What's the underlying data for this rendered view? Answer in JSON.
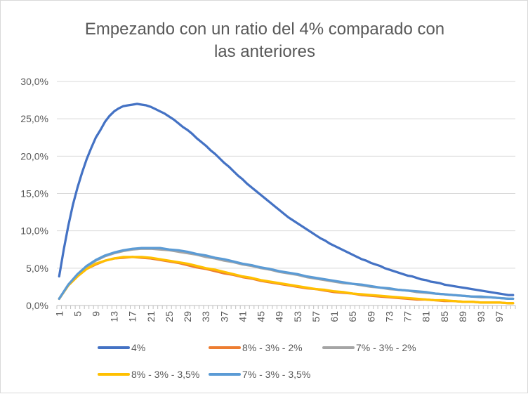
{
  "chart_data": {
    "type": "line",
    "title_lines": [
      "Empezando con un ratio del 4% comparado con",
      "las anteriores"
    ],
    "xlabel": "",
    "ylabel": "",
    "x_range": [
      1,
      100
    ],
    "x_tick_labels": [
      "1",
      "5",
      "9",
      "13",
      "17",
      "21",
      "25",
      "29",
      "33",
      "37",
      "41",
      "45",
      "49",
      "53",
      "57",
      "61",
      "65",
      "69",
      "73",
      "77",
      "81",
      "85",
      "89",
      "93",
      "97"
    ],
    "ylim": [
      0,
      0.3
    ],
    "y_tick_values": [
      0,
      0.05,
      0.1,
      0.15,
      0.2,
      0.25,
      0.3
    ],
    "y_tick_labels": [
      "0,0%",
      "5,0%",
      "10,0%",
      "15,0%",
      "20,0%",
      "25,0%",
      "30,0%"
    ],
    "grid": true,
    "legend_position": "bottom",
    "series": [
      {
        "name": "4%",
        "color": "#4472c4",
        "points": [
          [
            1,
            0.039
          ],
          [
            2,
            0.075
          ],
          [
            3,
            0.107
          ],
          [
            4,
            0.135
          ],
          [
            5,
            0.158
          ],
          [
            6,
            0.178
          ],
          [
            7,
            0.196
          ],
          [
            8,
            0.211
          ],
          [
            9,
            0.225
          ],
          [
            10,
            0.235
          ],
          [
            11,
            0.246
          ],
          [
            12,
            0.254
          ],
          [
            13,
            0.26
          ],
          [
            14,
            0.264
          ],
          [
            15,
            0.267
          ],
          [
            16,
            0.268
          ],
          [
            17,
            0.269
          ],
          [
            18,
            0.27
          ],
          [
            19,
            0.269
          ],
          [
            20,
            0.268
          ],
          [
            21,
            0.266
          ],
          [
            22,
            0.263
          ],
          [
            23,
            0.26
          ],
          [
            24,
            0.257
          ],
          [
            25,
            0.253
          ],
          [
            26,
            0.249
          ],
          [
            27,
            0.244
          ],
          [
            28,
            0.239
          ],
          [
            29,
            0.235
          ],
          [
            30,
            0.23
          ],
          [
            31,
            0.224
          ],
          [
            32,
            0.219
          ],
          [
            33,
            0.214
          ],
          [
            34,
            0.208
          ],
          [
            35,
            0.203
          ],
          [
            36,
            0.197
          ],
          [
            37,
            0.191
          ],
          [
            38,
            0.186
          ],
          [
            39,
            0.18
          ],
          [
            40,
            0.174
          ],
          [
            41,
            0.169
          ],
          [
            42,
            0.163
          ],
          [
            43,
            0.158
          ],
          [
            44,
            0.153
          ],
          [
            45,
            0.148
          ],
          [
            46,
            0.143
          ],
          [
            47,
            0.138
          ],
          [
            48,
            0.133
          ],
          [
            49,
            0.128
          ],
          [
            50,
            0.123
          ],
          [
            51,
            0.118
          ],
          [
            52,
            0.114
          ],
          [
            53,
            0.11
          ],
          [
            54,
            0.106
          ],
          [
            55,
            0.102
          ],
          [
            56,
            0.098
          ],
          [
            57,
            0.094
          ],
          [
            58,
            0.09
          ],
          [
            59,
            0.087
          ],
          [
            60,
            0.083
          ],
          [
            61,
            0.08
          ],
          [
            62,
            0.077
          ],
          [
            63,
            0.074
          ],
          [
            64,
            0.071
          ],
          [
            65,
            0.068
          ],
          [
            66,
            0.065
          ],
          [
            67,
            0.062
          ],
          [
            68,
            0.06
          ],
          [
            69,
            0.057
          ],
          [
            70,
            0.055
          ],
          [
            71,
            0.053
          ],
          [
            72,
            0.05
          ],
          [
            73,
            0.048
          ],
          [
            74,
            0.046
          ],
          [
            75,
            0.044
          ],
          [
            76,
            0.042
          ],
          [
            77,
            0.04
          ],
          [
            78,
            0.039
          ],
          [
            79,
            0.037
          ],
          [
            80,
            0.035
          ],
          [
            81,
            0.034
          ],
          [
            82,
            0.032
          ],
          [
            83,
            0.031
          ],
          [
            84,
            0.03
          ],
          [
            85,
            0.028
          ],
          [
            86,
            0.027
          ],
          [
            87,
            0.026
          ],
          [
            88,
            0.025
          ],
          [
            89,
            0.024
          ],
          [
            90,
            0.023
          ],
          [
            91,
            0.022
          ],
          [
            92,
            0.021
          ],
          [
            93,
            0.02
          ],
          [
            94,
            0.019
          ],
          [
            95,
            0.018
          ],
          [
            96,
            0.017
          ],
          [
            97,
            0.016
          ],
          [
            98,
            0.015
          ],
          [
            99,
            0.014
          ],
          [
            100,
            0.014
          ]
        ]
      },
      {
        "name": "8% - 3% - 2%",
        "color": "#ed7d31",
        "points": [
          [
            1,
            0.009
          ],
          [
            3,
            0.027
          ],
          [
            5,
            0.039
          ],
          [
            7,
            0.049
          ],
          [
            9,
            0.055
          ],
          [
            11,
            0.06
          ],
          [
            13,
            0.063
          ],
          [
            15,
            0.064
          ],
          [
            17,
            0.065
          ],
          [
            19,
            0.064
          ],
          [
            21,
            0.063
          ],
          [
            23,
            0.061
          ],
          [
            25,
            0.059
          ],
          [
            27,
            0.057
          ],
          [
            29,
            0.054
          ],
          [
            31,
            0.051
          ],
          [
            33,
            0.049
          ],
          [
            35,
            0.046
          ],
          [
            37,
            0.043
          ],
          [
            39,
            0.041
          ],
          [
            41,
            0.038
          ],
          [
            43,
            0.036
          ],
          [
            45,
            0.033
          ],
          [
            47,
            0.031
          ],
          [
            49,
            0.029
          ],
          [
            51,
            0.027
          ],
          [
            53,
            0.025
          ],
          [
            55,
            0.023
          ],
          [
            57,
            0.022
          ],
          [
            59,
            0.02
          ],
          [
            61,
            0.018
          ],
          [
            63,
            0.017
          ],
          [
            65,
            0.016
          ],
          [
            67,
            0.014
          ],
          [
            69,
            0.013
          ],
          [
            71,
            0.012
          ],
          [
            73,
            0.011
          ],
          [
            75,
            0.01
          ],
          [
            77,
            0.009
          ],
          [
            79,
            0.008
          ],
          [
            81,
            0.008
          ],
          [
            83,
            0.007
          ],
          [
            85,
            0.006
          ],
          [
            87,
            0.006
          ],
          [
            89,
            0.005
          ],
          [
            91,
            0.005
          ],
          [
            93,
            0.004
          ],
          [
            95,
            0.004
          ],
          [
            97,
            0.004
          ],
          [
            99,
            0.003
          ],
          [
            100,
            0.003
          ]
        ]
      },
      {
        "name": "7% - 3% - 2%",
        "color": "#a5a5a5",
        "points": [
          [
            1,
            0.009
          ],
          [
            3,
            0.028
          ],
          [
            5,
            0.041
          ],
          [
            7,
            0.052
          ],
          [
            9,
            0.06
          ],
          [
            11,
            0.066
          ],
          [
            13,
            0.07
          ],
          [
            15,
            0.073
          ],
          [
            17,
            0.075
          ],
          [
            19,
            0.076
          ],
          [
            21,
            0.076
          ],
          [
            23,
            0.075
          ],
          [
            25,
            0.074
          ],
          [
            27,
            0.072
          ],
          [
            29,
            0.07
          ],
          [
            31,
            0.068
          ],
          [
            33,
            0.065
          ],
          [
            35,
            0.063
          ],
          [
            37,
            0.06
          ],
          [
            39,
            0.058
          ],
          [
            41,
            0.055
          ],
          [
            43,
            0.053
          ],
          [
            45,
            0.05
          ],
          [
            47,
            0.048
          ],
          [
            49,
            0.045
          ],
          [
            51,
            0.043
          ],
          [
            53,
            0.041
          ],
          [
            55,
            0.038
          ],
          [
            57,
            0.036
          ],
          [
            59,
            0.034
          ],
          [
            61,
            0.032
          ],
          [
            63,
            0.03
          ],
          [
            65,
            0.029
          ],
          [
            67,
            0.027
          ],
          [
            69,
            0.025
          ],
          [
            71,
            0.024
          ],
          [
            73,
            0.022
          ],
          [
            75,
            0.021
          ],
          [
            77,
            0.02
          ],
          [
            79,
            0.018
          ],
          [
            81,
            0.017
          ],
          [
            83,
            0.016
          ],
          [
            85,
            0.015
          ],
          [
            87,
            0.014
          ],
          [
            89,
            0.013
          ],
          [
            91,
            0.012
          ],
          [
            93,
            0.011
          ],
          [
            95,
            0.011
          ],
          [
            97,
            0.01
          ],
          [
            99,
            0.009
          ],
          [
            100,
            0.009
          ]
        ]
      },
      {
        "name": "8% - 3% - 3,5%",
        "color": "#ffc000",
        "points": [
          [
            1,
            0.009
          ],
          [
            3,
            0.027
          ],
          [
            5,
            0.039
          ],
          [
            7,
            0.049
          ],
          [
            9,
            0.056
          ],
          [
            11,
            0.06
          ],
          [
            13,
            0.063
          ],
          [
            15,
            0.065
          ],
          [
            17,
            0.065
          ],
          [
            19,
            0.065
          ],
          [
            21,
            0.064
          ],
          [
            23,
            0.062
          ],
          [
            25,
            0.06
          ],
          [
            27,
            0.058
          ],
          [
            29,
            0.056
          ],
          [
            31,
            0.053
          ],
          [
            33,
            0.05
          ],
          [
            35,
            0.048
          ],
          [
            37,
            0.045
          ],
          [
            39,
            0.042
          ],
          [
            41,
            0.039
          ],
          [
            43,
            0.037
          ],
          [
            45,
            0.034
          ],
          [
            47,
            0.032
          ],
          [
            49,
            0.03
          ],
          [
            51,
            0.028
          ],
          [
            53,
            0.026
          ],
          [
            55,
            0.024
          ],
          [
            57,
            0.022
          ],
          [
            59,
            0.021
          ],
          [
            61,
            0.019
          ],
          [
            63,
            0.018
          ],
          [
            65,
            0.016
          ],
          [
            67,
            0.015
          ],
          [
            69,
            0.014
          ],
          [
            71,
            0.013
          ],
          [
            73,
            0.012
          ],
          [
            75,
            0.011
          ],
          [
            77,
            0.01
          ],
          [
            79,
            0.009
          ],
          [
            81,
            0.008
          ],
          [
            83,
            0.007
          ],
          [
            85,
            0.007
          ],
          [
            87,
            0.006
          ],
          [
            89,
            0.005
          ],
          [
            91,
            0.005
          ],
          [
            93,
            0.004
          ],
          [
            95,
            0.004
          ],
          [
            97,
            0.004
          ],
          [
            99,
            0.003
          ],
          [
            100,
            0.003
          ]
        ]
      },
      {
        "name": "7% - 3% - 3,5%",
        "color": "#5b9bd5",
        "points": [
          [
            1,
            0.009
          ],
          [
            3,
            0.028
          ],
          [
            5,
            0.042
          ],
          [
            7,
            0.053
          ],
          [
            9,
            0.061
          ],
          [
            11,
            0.067
          ],
          [
            13,
            0.071
          ],
          [
            15,
            0.074
          ],
          [
            17,
            0.076
          ],
          [
            19,
            0.077
          ],
          [
            21,
            0.077
          ],
          [
            23,
            0.077
          ],
          [
            25,
            0.075
          ],
          [
            27,
            0.074
          ],
          [
            29,
            0.072
          ],
          [
            31,
            0.069
          ],
          [
            33,
            0.067
          ],
          [
            35,
            0.064
          ],
          [
            37,
            0.062
          ],
          [
            39,
            0.059
          ],
          [
            41,
            0.056
          ],
          [
            43,
            0.054
          ],
          [
            45,
            0.051
          ],
          [
            47,
            0.049
          ],
          [
            49,
            0.046
          ],
          [
            51,
            0.044
          ],
          [
            53,
            0.042
          ],
          [
            55,
            0.039
          ],
          [
            57,
            0.037
          ],
          [
            59,
            0.035
          ],
          [
            61,
            0.033
          ],
          [
            63,
            0.031
          ],
          [
            65,
            0.029
          ],
          [
            67,
            0.028
          ],
          [
            69,
            0.026
          ],
          [
            71,
            0.024
          ],
          [
            73,
            0.023
          ],
          [
            75,
            0.021
          ],
          [
            77,
            0.02
          ],
          [
            79,
            0.019
          ],
          [
            81,
            0.018
          ],
          [
            83,
            0.016
          ],
          [
            85,
            0.015
          ],
          [
            87,
            0.014
          ],
          [
            89,
            0.013
          ],
          [
            91,
            0.012
          ],
          [
            93,
            0.012
          ],
          [
            95,
            0.011
          ],
          [
            97,
            0.01
          ],
          [
            99,
            0.009
          ],
          [
            100,
            0.009
          ]
        ]
      }
    ]
  }
}
